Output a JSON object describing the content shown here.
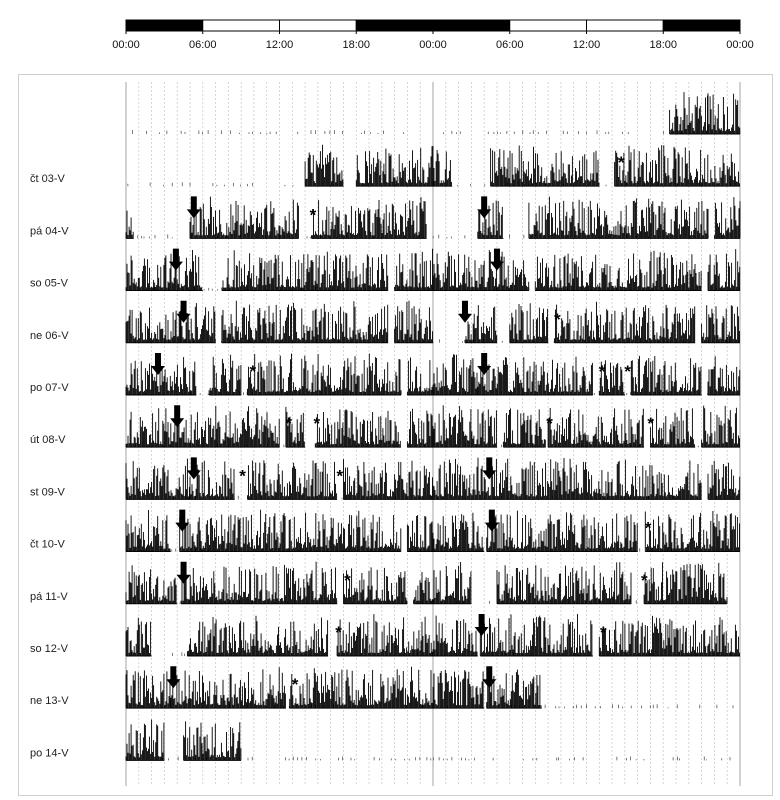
{
  "chart_data": {
    "type": "double-plotted actogram",
    "light_dark_bar": [
      "dark",
      "light",
      "light",
      "dark",
      "dark",
      "light",
      "light",
      "dark"
    ],
    "x_tick_labels": [
      "00:00",
      "06:00",
      "12:00",
      "18:00",
      "00:00",
      "06:00",
      "12:00",
      "18:00",
      "00:00"
    ],
    "x_range_hours": [
      0,
      48
    ],
    "gridline_interval_hours": 1,
    "rows": [
      {
        "label": "",
        "left_segments": [],
        "right_segments": [
          [
            18.5,
            21.5
          ],
          [
            21.5,
            24
          ]
        ],
        "left_arrow_hour": null,
        "right_arrow_hour": null,
        "left_asterisks": [],
        "right_asterisks": []
      },
      {
        "label": "čt 03-V",
        "left_segments": [
          [
            14,
            17
          ],
          [
            18,
            24
          ]
        ],
        "right_segments": [
          [
            0,
            1.5
          ],
          [
            4.5,
            13
          ],
          [
            14.2,
            19
          ],
          [
            19,
            24
          ]
        ],
        "left_arrow_hour": null,
        "right_arrow_hour": null,
        "left_asterisks": [],
        "right_asterisks": [
          14.3
        ]
      },
      {
        "label": "pá 04-V",
        "left_segments": [
          [
            0,
            0.6
          ],
          [
            5,
            13.5
          ],
          [
            14.5,
            23.5
          ]
        ],
        "right_segments": [
          [
            3.5,
            5.5
          ],
          [
            7.5,
            21.5
          ],
          [
            22,
            24
          ]
        ],
        "left_arrow_hour": 5.3,
        "right_arrow_hour": 4,
        "left_asterisks": [
          14.2
        ],
        "right_asterisks": []
      },
      {
        "label": "so 05-V",
        "left_segments": [
          [
            0,
            6
          ],
          [
            7.5,
            20.5
          ],
          [
            21,
            24
          ]
        ],
        "right_segments": [
          [
            0,
            5
          ],
          [
            5,
            7.5
          ],
          [
            8,
            21
          ],
          [
            21.5,
            24
          ]
        ],
        "left_arrow_hour": 3.9,
        "right_arrow_hour": 5,
        "left_asterisks": [],
        "right_asterisks": []
      },
      {
        "label": "ne 06-V",
        "left_segments": [
          [
            0,
            4.3
          ],
          [
            4.3,
            7
          ],
          [
            7.5,
            20.5
          ],
          [
            21,
            24
          ]
        ],
        "right_segments": [
          [
            2.5,
            5
          ],
          [
            6,
            9
          ],
          [
            9.5,
            20.5
          ],
          [
            21,
            24
          ]
        ],
        "left_arrow_hour": 4.5,
        "right_arrow_hour": 2.5,
        "left_asterisks": [],
        "right_asterisks": [
          9.3
        ]
      },
      {
        "label": "po 07-V",
        "left_segments": [
          [
            0,
            2.5
          ],
          [
            2.5,
            5.5
          ],
          [
            6.5,
            9
          ],
          [
            9.5,
            21.5
          ],
          [
            22,
            24
          ]
        ],
        "right_segments": [
          [
            0,
            3.5
          ],
          [
            3.5,
            12.5
          ],
          [
            13,
            15
          ],
          [
            15.5,
            21
          ],
          [
            21.5,
            24
          ]
        ],
        "left_arrow_hour": 2.5,
        "right_arrow_hour": 4,
        "left_asterisks": [
          9.5
        ],
        "right_asterisks": [
          12.8,
          14.8
        ]
      },
      {
        "label": "út 08-V",
        "left_segments": [
          [
            0,
            3.5
          ],
          [
            3.5,
            12
          ],
          [
            12.5,
            14
          ],
          [
            14.8,
            21.5
          ],
          [
            22,
            24
          ]
        ],
        "right_segments": [
          [
            0,
            5
          ],
          [
            5.5,
            8.8
          ],
          [
            9,
            16.5
          ],
          [
            17,
            20.5
          ],
          [
            21,
            24
          ]
        ],
        "left_arrow_hour": 4,
        "right_arrow_hour": null,
        "left_asterisks": [
          12.3,
          14.5
        ],
        "right_asterisks": [
          8.7,
          16.6
        ]
      },
      {
        "label": "st 09-V",
        "left_segments": [
          [
            0,
            5
          ],
          [
            5,
            8.5
          ],
          [
            9.5,
            16.5
          ],
          [
            17,
            23
          ],
          [
            23,
            24
          ]
        ],
        "right_segments": [
          [
            0,
            4
          ],
          [
            4,
            21
          ],
          [
            21.5,
            24
          ]
        ],
        "left_arrow_hour": 5.3,
        "right_arrow_hour": 4.4,
        "left_asterisks": [
          8.7,
          16.3
        ],
        "right_asterisks": []
      },
      {
        "label": "čt 10-V",
        "left_segments": [
          [
            0,
            3.5
          ],
          [
            4.2,
            21.5
          ],
          [
            22,
            24
          ]
        ],
        "right_segments": [
          [
            0,
            4
          ],
          [
            4.2,
            16
          ],
          [
            16.6,
            24
          ]
        ],
        "left_arrow_hour": 4.4,
        "right_arrow_hour": 4.6,
        "left_asterisks": [],
        "right_asterisks": [
          16.4
        ]
      },
      {
        "label": "pá 11-V",
        "left_segments": [
          [
            0,
            4
          ],
          [
            4.3,
            16.5
          ],
          [
            17,
            22
          ],
          [
            22.5,
            24
          ]
        ],
        "right_segments": [
          [
            0,
            3
          ],
          [
            5,
            15.5
          ],
          [
            16.5,
            23
          ]
        ],
        "left_arrow_hour": 4.5,
        "right_arrow_hour": null,
        "left_asterisks": [
          16.9
        ],
        "right_asterisks": [
          16.1
        ]
      },
      {
        "label": "so 12-V",
        "left_segments": [
          [
            0,
            2
          ],
          [
            4.8,
            15.8
          ],
          [
            16.5,
            24
          ]
        ],
        "right_segments": [
          [
            0,
            3.5
          ],
          [
            3.7,
            12.5
          ],
          [
            13,
            24
          ]
        ],
        "left_arrow_hour": null,
        "right_arrow_hour": 3.8,
        "left_asterisks": [
          16.2
        ],
        "right_asterisks": [
          12.9
        ]
      },
      {
        "label": "ne 13-V",
        "left_segments": [
          [
            0,
            3.5
          ],
          [
            3.5,
            12.5
          ],
          [
            12.8,
            24
          ]
        ],
        "right_segments": [
          [
            0,
            4
          ],
          [
            4.2,
            8.5
          ]
        ],
        "left_arrow_hour": 3.7,
        "right_arrow_hour": 4.4,
        "left_asterisks": [
          12.8
        ],
        "right_asterisks": []
      },
      {
        "label": "po 14-V",
        "left_segments": [
          [
            0,
            3
          ],
          [
            4.5,
            9
          ]
        ],
        "right_segments": [],
        "left_arrow_hour": null,
        "right_arrow_hour": null,
        "left_asterisks": [],
        "right_asterisks": []
      }
    ]
  }
}
